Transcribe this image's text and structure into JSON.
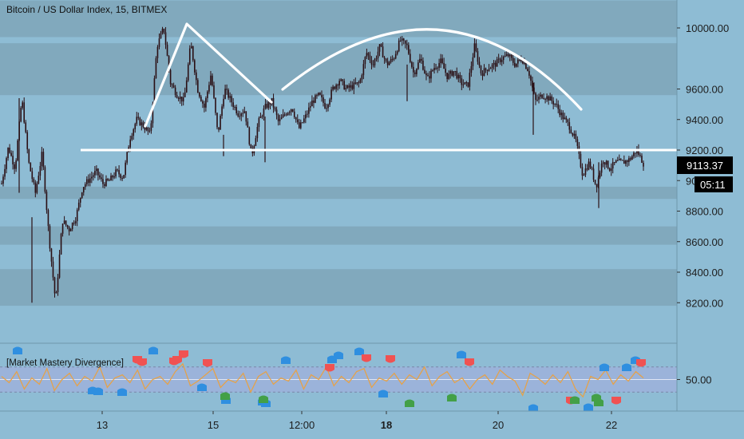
{
  "header": {
    "title": "Bitcoin / US Dollar Index, 15, BITMEX"
  },
  "indicator": {
    "label": "[Market Mastery Divergence]"
  },
  "price_tag": {
    "price": "9113.37",
    "countdown": "05:11"
  },
  "colors": {
    "background": "#8ebcd4",
    "zone": "#7fa6b9",
    "candle": "#2a0f14",
    "pattern_line": "#ffffff",
    "oscillator": "#e5a24a",
    "band": "#9fb0dc",
    "bull_marker": "#2f8fe0",
    "bear_marker": "#f05252",
    "hidden_marker": "#43a047"
  },
  "chart_data": [
    {
      "type": "line",
      "series": [
        {
          "values": [
            8980,
            9220,
            9080,
            9540,
            9120,
            8920,
            9180,
            8640,
            8200,
            8740,
            8680,
            8760,
            8960,
            9010,
            9060,
            8980,
            9000,
            9060,
            9020,
            9280,
            9400,
            9360,
            9300,
            9880,
            10000,
            9640,
            9560,
            9520,
            9900,
            9600,
            9480,
            9700,
            9300,
            9600,
            9520,
            9440,
            9460,
            9160,
            9380,
            9480,
            9520,
            9380,
            9440,
            9480,
            9340,
            9420,
            9520,
            9560,
            9480,
            9600,
            9660,
            9600,
            9620,
            9640,
            9840,
            9760,
            9880,
            9760,
            9800,
            9920,
            9880,
            9700,
            9800,
            9660,
            9740,
            9780,
            9680,
            9720,
            9640,
            9620,
            9880,
            9700,
            9740,
            9760,
            9800,
            9820,
            9760,
            9800,
            9720,
            9520,
            9560,
            9540,
            9500,
            9420,
            9360,
            9260,
            9040,
            9120,
            8960,
            9140,
            9080,
            9120,
            9120,
            9140,
            9200,
            9113
          ]
        }
      ],
      "ylim": [
        8100,
        10180
      ],
      "yticks": [
        "10000.00",
        "9600.00",
        "9400.00",
        "9200.00",
        "9000.00",
        "8800.00",
        "8600.00",
        "8400.00",
        "8200.00"
      ],
      "xticks": [
        "13",
        "15",
        "12:00",
        "18",
        "20",
        "22"
      ],
      "zones": [
        [
          9940,
          10180
        ],
        [
          9560,
          9900
        ],
        [
          8880,
          8960
        ],
        [
          8580,
          8700
        ],
        [
          8180,
          8420
        ]
      ],
      "neckline": 9200,
      "annotations": [
        "head-and-shoulders pattern lines",
        "rounded top arc",
        "neckline at 9200"
      ]
    },
    {
      "type": "line",
      "series": [
        {
          "values": [
            52,
            48,
            55,
            44,
            51,
            47,
            57,
            43,
            50,
            54,
            46,
            52,
            49,
            58,
            45,
            51,
            53,
            48,
            56,
            44,
            50,
            52,
            47,
            55,
            60,
            46,
            49,
            53,
            57,
            45,
            50,
            48,
            54,
            42,
            52,
            55,
            47,
            51,
            49,
            56,
            44,
            53,
            50,
            58,
            46,
            52,
            48,
            55,
            57,
            45,
            51,
            49,
            54,
            47,
            53,
            50,
            58,
            46,
            52,
            55,
            48,
            51,
            44,
            50,
            53,
            47,
            56,
            52,
            49,
            40,
            54,
            51,
            47,
            53,
            48,
            55,
            44,
            39,
            52,
            50,
            56,
            47,
            53,
            49,
            55,
            51
          ]
        }
      ],
      "ylim": [
        30,
        70
      ],
      "yticks": [
        "50.00"
      ],
      "band": [
        42,
        58
      ]
    }
  ]
}
